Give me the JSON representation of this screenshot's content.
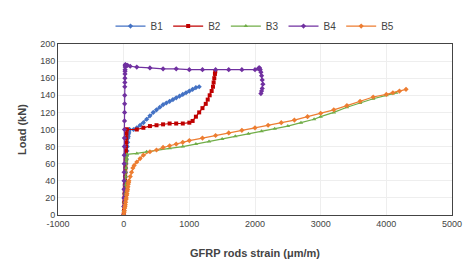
{
  "chart_data": {
    "type": "line",
    "xlabel": "GFRP rods strain (μm/m)",
    "ylabel": "Load (kN)",
    "xlim": [
      -1000,
      5000
    ],
    "ylim": [
      0,
      200
    ],
    "xticks": [
      -1000,
      0,
      1000,
      2000,
      3000,
      4000,
      5000
    ],
    "yticks": [
      0,
      20,
      40,
      60,
      80,
      100,
      120,
      140,
      160,
      180,
      200
    ],
    "grid": true,
    "legend": "top",
    "series": [
      {
        "name": "B1",
        "color": "#4472C4",
        "marker": "diamond",
        "x": [
          0,
          5,
          8,
          10,
          12,
          15,
          18,
          20,
          22,
          25,
          28,
          30,
          35,
          40,
          45,
          50,
          55,
          60,
          65,
          70,
          75,
          80,
          85,
          90,
          150,
          200,
          250,
          300,
          350,
          400,
          450,
          500,
          550,
          600,
          650,
          700,
          750,
          800,
          850,
          900,
          950,
          1000,
          1050,
          1100,
          1150
        ],
        "values": [
          0,
          5,
          10,
          15,
          20,
          25,
          30,
          35,
          40,
          45,
          50,
          55,
          60,
          65,
          70,
          75,
          80,
          85,
          90,
          92,
          95,
          97,
          100,
          100,
          100,
          102,
          105,
          108,
          112,
          116,
          120,
          123,
          126,
          129,
          131,
          133,
          135,
          137,
          139,
          141,
          143,
          145,
          147,
          149,
          150
        ]
      },
      {
        "name": "B2",
        "color": "#C00000",
        "marker": "square",
        "x": [
          0,
          5,
          8,
          10,
          12,
          14,
          16,
          18,
          20,
          22,
          24,
          26,
          28,
          30,
          32,
          34,
          36,
          38,
          40,
          42,
          44,
          46,
          200,
          300,
          400,
          500,
          600,
          700,
          800,
          900,
          1000,
          1050,
          1100,
          1150,
          1200,
          1250,
          1280,
          1310,
          1340,
          1360,
          1370,
          1380,
          1390,
          1395
        ],
        "values": [
          0,
          5,
          10,
          15,
          20,
          25,
          30,
          35,
          40,
          45,
          50,
          55,
          60,
          65,
          70,
          75,
          80,
          85,
          90,
          95,
          100,
          100,
          100,
          102,
          104,
          105,
          106,
          107,
          107,
          107,
          108,
          110,
          115,
          120,
          125,
          130,
          135,
          140,
          145,
          150,
          155,
          160,
          165,
          168
        ]
      },
      {
        "name": "B3",
        "color": "#70AD47",
        "marker": "triangle",
        "x": [
          0,
          5,
          8,
          12,
          15,
          18,
          22,
          25,
          28,
          30,
          32,
          35,
          38,
          40,
          42,
          44,
          46,
          48,
          200,
          350,
          500,
          700,
          900,
          1100,
          1300,
          1500,
          1700,
          1900,
          2100,
          2300,
          2500,
          2700,
          2900,
          3000,
          3200,
          3400,
          3600,
          3800,
          4000,
          4100,
          4150
        ],
        "values": [
          0,
          5,
          10,
          15,
          20,
          25,
          30,
          35,
          40,
          45,
          50,
          55,
          60,
          63,
          65,
          67,
          69,
          71,
          72,
          74,
          76,
          78,
          80,
          83,
          86,
          89,
          92,
          95,
          98,
          101,
          104,
          108,
          112,
          115,
          120,
          126,
          131,
          136,
          140,
          142,
          143
        ]
      },
      {
        "name": "B4",
        "color": "#7030A0",
        "marker": "diamond",
        "x": [
          0,
          2,
          4,
          5,
          6,
          7,
          8,
          9,
          10,
          11,
          12,
          13,
          14,
          15,
          16,
          17,
          18,
          19,
          20,
          21,
          22,
          23,
          24,
          25,
          26,
          28,
          40,
          60,
          100,
          200,
          400,
          600,
          800,
          1000,
          1200,
          1400,
          1600,
          1800,
          2000,
          2050,
          2060,
          2070,
          2080,
          2090,
          2100,
          2110,
          2120,
          2110,
          2100,
          2090
        ],
        "values": [
          0,
          10,
          20,
          30,
          40,
          50,
          60,
          70,
          80,
          90,
          100,
          110,
          120,
          130,
          140,
          150,
          155,
          160,
          165,
          168,
          170,
          173,
          175,
          176,
          175,
          175,
          175,
          175,
          174,
          173,
          172,
          171,
          171,
          170,
          170,
          170,
          170,
          170,
          170,
          171,
          172,
          172,
          170,
          167,
          163,
          158,
          153,
          148,
          145,
          142
        ]
      },
      {
        "name": "B5",
        "color": "#ED7D31",
        "marker": "diamond",
        "x": [
          0,
          5,
          10,
          15,
          20,
          25,
          30,
          35,
          40,
          45,
          50,
          55,
          60,
          65,
          70,
          75,
          80,
          100,
          120,
          140,
          160,
          200,
          250,
          300,
          400,
          500,
          600,
          700,
          800,
          900,
          1000,
          1200,
          1400,
          1600,
          1800,
          2000,
          2200,
          2400,
          2600,
          2800,
          3000,
          3200,
          3400,
          3600,
          3800,
          4000,
          4100,
          4200,
          4300
        ],
        "values": [
          0,
          3,
          5,
          8,
          10,
          12,
          15,
          18,
          20,
          23,
          25,
          28,
          30,
          33,
          36,
          38,
          40,
          45,
          50,
          55,
          58,
          62,
          66,
          70,
          74,
          76,
          79,
          81,
          83,
          85,
          87,
          90,
          93,
          96,
          99,
          102,
          105,
          108,
          111,
          115,
          119,
          123,
          128,
          133,
          138,
          141,
          143,
          145,
          147
        ]
      }
    ]
  }
}
